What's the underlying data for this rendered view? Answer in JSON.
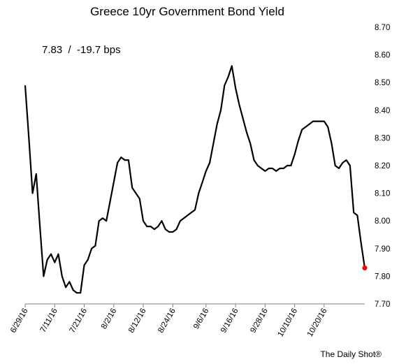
{
  "chart_data": {
    "type": "line",
    "title": "Greece 10yr Government Bond Yield",
    "annotation": "7.83  /  -19.7 bps",
    "credit": "The Daily Shot®",
    "xlabel": "",
    "ylabel": "",
    "ylim": [
      7.7,
      8.7
    ],
    "y_ticks": [
      "7.70",
      "7.80",
      "7.90",
      "8.00",
      "8.10",
      "8.20",
      "8.30",
      "8.40",
      "8.50",
      "8.60",
      "8.70"
    ],
    "x_tick_labels": [
      "6/29/16",
      "7/11/16",
      "7/21/16",
      "8/2/16",
      "8/12/16",
      "8/24/16",
      "9/6/16",
      "9/16/16",
      "9/28/16",
      "10/10/16",
      "10/20/16"
    ],
    "x_tick_indices": [
      0,
      8,
      16,
      24,
      32,
      40,
      49,
      57,
      65,
      73,
      81
    ],
    "n_points": 93,
    "grid": false,
    "legend": "none",
    "line_color": "#000000",
    "last_point_color": "#ff0000",
    "series": [
      {
        "values": [
          8.49,
          8.3,
          8.1,
          8.17,
          7.98,
          7.8,
          7.86,
          7.88,
          7.85,
          7.88,
          7.8,
          7.76,
          7.78,
          7.75,
          7.74,
          7.74,
          7.84,
          7.86,
          7.9,
          7.91,
          8.0,
          8.01,
          8.0,
          8.07,
          8.14,
          8.21,
          8.23,
          8.22,
          8.22,
          8.12,
          8.1,
          8.08,
          8.0,
          7.98,
          7.98,
          7.97,
          7.98,
          8.0,
          7.97,
          7.96,
          7.96,
          7.97,
          8.0,
          8.01,
          8.02,
          8.03,
          8.04,
          8.1,
          8.14,
          8.18,
          8.21,
          8.28,
          8.35,
          8.4,
          8.49,
          8.52,
          8.56,
          8.48,
          8.42,
          8.37,
          8.32,
          8.28,
          8.22,
          8.2,
          8.19,
          8.18,
          8.19,
          8.19,
          8.18,
          8.19,
          8.19,
          8.2,
          8.2,
          8.24,
          8.29,
          8.33,
          8.34,
          8.35,
          8.36,
          8.36,
          8.36,
          8.36,
          8.34,
          8.28,
          8.2,
          8.19,
          8.21,
          8.22,
          8.2,
          8.03,
          8.02,
          7.92,
          7.83
        ]
      }
    ]
  }
}
